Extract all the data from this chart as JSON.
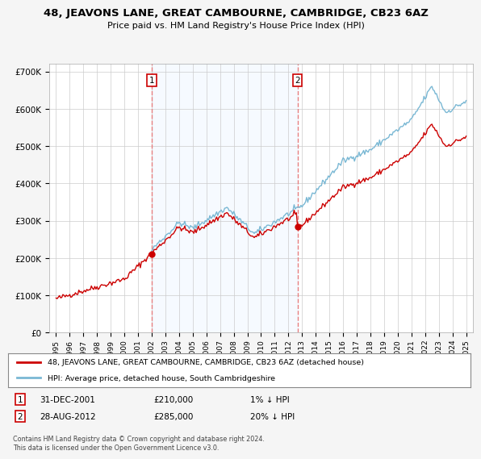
{
  "title": "48, JEAVONS LANE, GREAT CAMBOURNE, CAMBRIDGE, CB23 6AZ",
  "subtitle": "Price paid vs. HM Land Registry's House Price Index (HPI)",
  "legend_line1": "48, JEAVONS LANE, GREAT CAMBOURNE, CAMBRIDGE, CB23 6AZ (detached house)",
  "legend_line2": "HPI: Average price, detached house, South Cambridgeshire",
  "transaction1_date": "31-DEC-2001",
  "transaction1_price": "£210,000",
  "transaction1_hpi": "1% ↓ HPI",
  "transaction2_date": "28-AUG-2012",
  "transaction2_price": "£285,000",
  "transaction2_hpi": "20% ↓ HPI",
  "footnote": "Contains HM Land Registry data © Crown copyright and database right 2024.\nThis data is licensed under the Open Government Licence v3.0.",
  "hpi_color": "#7ab8d4",
  "price_color": "#cc0000",
  "marker_color": "#cc0000",
  "vline_color": "#e88080",
  "shade_color": "#ddeeff",
  "background_color": "#f5f5f5",
  "plot_bg_color": "#ffffff",
  "ylim": [
    0,
    720000
  ],
  "yticks": [
    0,
    100000,
    200000,
    300000,
    400000,
    500000,
    600000,
    700000
  ],
  "sale1_t": 2002.0,
  "sale1_price": 210000,
  "sale2_t": 2012.66,
  "sale2_price": 285000,
  "xmin": 1994.5,
  "xmax": 2025.5
}
